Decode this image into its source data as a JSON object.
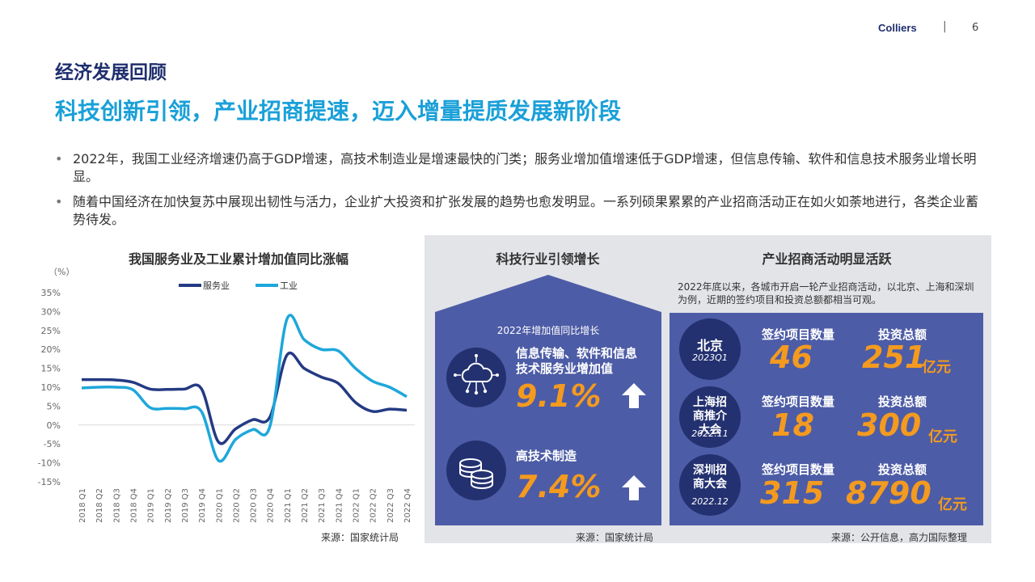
{
  "header": {
    "brand": "Colliers",
    "separator": "|",
    "page_number": "6"
  },
  "section_title": "经济发展回顾",
  "headline": "科技创新引领，产业招商提速，迈入增量提质发展新阶段",
  "bullets": [
    "2022年，我国工业经济增速仍高于GDP增速，高技术制造业是增速最快的门类；服务业增加值增速低于GDP增速，但信息传输、软件和信息技术服务业增长明显。",
    "随着中国经济在加快复苏中展现出韧性与活力，企业扩大投资和扩张发展的趋势也愈发明显。一系列硕果累累的产业招商活动正在如火如荼地进行，各类企业蓄势待发。"
  ],
  "chart_data": {
    "type": "line",
    "title": "我国服务业及工业累计增加值同比涨幅",
    "ylabel": "（%）",
    "ylim": [
      -15,
      35
    ],
    "yticks": [
      "35%",
      "30%",
      "25%",
      "20%",
      "15%",
      "10%",
      "5%",
      "0%",
      "-5%",
      "-10%",
      "-15%"
    ],
    "categories": [
      "2018 Q1",
      "2018 Q2",
      "2018 Q3",
      "2018 Q4",
      "2019 Q1",
      "2019 Q2",
      "2019 Q3",
      "2019 Q4",
      "2020 Q1",
      "2020 Q2",
      "2020 Q3",
      "2020 Q4",
      "2021 Q1",
      "2021 Q2",
      "2021 Q3",
      "2021 Q4",
      "2022 Q1",
      "2022 Q2",
      "2022 Q3",
      "2022 Q4"
    ],
    "series": [
      {
        "name": "服务业",
        "color": "#243a83",
        "values": [
          12.0,
          12.0,
          11.9,
          11.3,
          9.5,
          9.4,
          9.5,
          9.6,
          -4.5,
          -1.0,
          1.4,
          2.1,
          18.5,
          15.0,
          12.7,
          11.0,
          6.0,
          3.6,
          4.2,
          3.9
        ]
      },
      {
        "name": "工业",
        "color": "#1ea7db",
        "values": [
          9.8,
          10.0,
          10.0,
          9.3,
          4.6,
          4.4,
          4.3,
          3.6,
          -9.4,
          -3.8,
          -1.2,
          -0.4,
          28.0,
          22.6,
          20.0,
          19.6,
          15.0,
          11.6,
          10.0,
          7.5
        ]
      }
    ],
    "legend": "top",
    "grid": false,
    "source": "来源：国家统计局"
  },
  "tech_panel": {
    "title": "科技行业引领增长",
    "subtitle": "2022年增加值同比增长",
    "items": [
      {
        "label": "信息传输、软件和信息技术服务业增加值",
        "value": "9.1%",
        "icon": "cloud-network-icon",
        "trend_icon": "up-arrow-icon"
      },
      {
        "label": "高技术制造",
        "value": "7.4%",
        "icon": "coins-icon",
        "trend_icon": "up-arrow-icon"
      }
    ],
    "source": "来源：国家统计局"
  },
  "invest_panel": {
    "title": "产业招商活动明显活跃",
    "desc": "2022年底以来，各城市开启一轮产业招商活动，以北京、上海和深圳为例，近期的签约项目和投资总额都相当可观。",
    "col_projects": "签约项目数量",
    "col_amount": "投资总额",
    "unit": "亿元",
    "rows": [
      {
        "name": "北京",
        "date": "2023Q1",
        "projects": "46",
        "amount": "251"
      },
      {
        "name": "上海招商推介大会",
        "date": "2022.11",
        "projects": "18",
        "amount": "300"
      },
      {
        "name": "深圳招商大会",
        "date": "2022.12",
        "projects": "315",
        "amount": "8790"
      }
    ],
    "source": "来源：公开信息，高力国际整理"
  },
  "colors": {
    "navy": "#1f2f6e",
    "accent": "#1aa0d8",
    "card": "#4d5ca6",
    "orange": "#f39a1f",
    "panel_bg": "#e2e4e8"
  }
}
